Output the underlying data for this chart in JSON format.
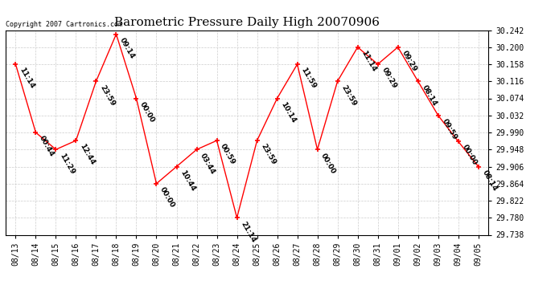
{
  "title": "Barometric Pressure Daily High 20070906",
  "copyright": "Copyright 2007 Cartronics.com",
  "x_labels": [
    "08/13",
    "08/14",
    "08/15",
    "08/16",
    "08/17",
    "08/18",
    "08/19",
    "08/20",
    "08/21",
    "08/22",
    "08/23",
    "08/24",
    "08/25",
    "08/26",
    "08/27",
    "08/28",
    "08/29",
    "08/30",
    "08/31",
    "09/01",
    "09/02",
    "09/03",
    "09/04",
    "09/05"
  ],
  "y_values": [
    30.158,
    29.99,
    29.948,
    29.97,
    30.116,
    30.232,
    30.074,
    29.864,
    29.906,
    29.948,
    29.97,
    29.78,
    29.97,
    30.074,
    30.158,
    29.948,
    30.116,
    30.2,
    30.158,
    30.2,
    30.116,
    30.032,
    29.968,
    29.906
  ],
  "point_labels": [
    "11:14",
    "00:44",
    "11:29",
    "12:44",
    "23:59",
    "09:14",
    "00:00",
    "00:00",
    "10:44",
    "03:44",
    "00:59",
    "21:14",
    "23:59",
    "10:14",
    "11:59",
    "00:00",
    "23:59",
    "11:14",
    "09:29",
    "09:29",
    "08:14",
    "09:59",
    "00:00",
    "08:14"
  ],
  "y_min": 29.738,
  "y_max": 30.242,
  "y_ticks": [
    29.738,
    29.78,
    29.822,
    29.864,
    29.906,
    29.948,
    29.99,
    30.032,
    30.074,
    30.116,
    30.158,
    30.2,
    30.242
  ],
  "line_color": "#ff0000",
  "marker_color": "#ff0000",
  "bg_color": "#ffffff",
  "grid_color": "#cccccc",
  "title_fontsize": 11,
  "label_fontsize": 6.5,
  "tick_fontsize": 7,
  "copyright_fontsize": 6
}
